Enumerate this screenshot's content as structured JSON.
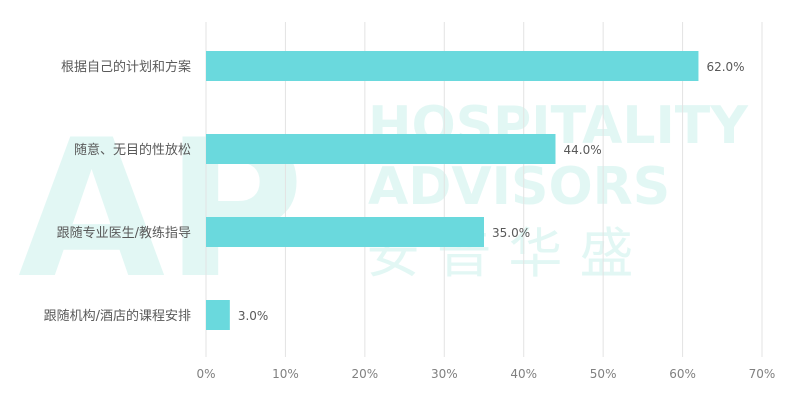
{
  "watermark": {
    "line1": "HOSPITALITY",
    "line2": "ADVISORS",
    "line3": "安 普 华 盛",
    "logo": "AP"
  },
  "chart_data": {
    "type": "bar",
    "orientation": "horizontal",
    "categories": [
      "根据自己的计划和方案",
      "随意、无目的性放松",
      "跟随专业医生/教练指导",
      "跟随机构/酒店的课程安排"
    ],
    "values": [
      62.0,
      44.0,
      35.0,
      3.0
    ],
    "value_labels": [
      "62.0%",
      "44.0%",
      "35.0%",
      "3.0%"
    ],
    "xlim": [
      0,
      70
    ],
    "ticks": [
      0,
      10,
      20,
      30,
      40,
      50,
      60,
      70
    ],
    "tick_labels": [
      "0%",
      "10%",
      "20%",
      "30%",
      "40%",
      "50%",
      "60%",
      "70%"
    ],
    "title": "",
    "xlabel": "",
    "ylabel": "",
    "grid": true,
    "bar_color": "#6ad9dd"
  }
}
